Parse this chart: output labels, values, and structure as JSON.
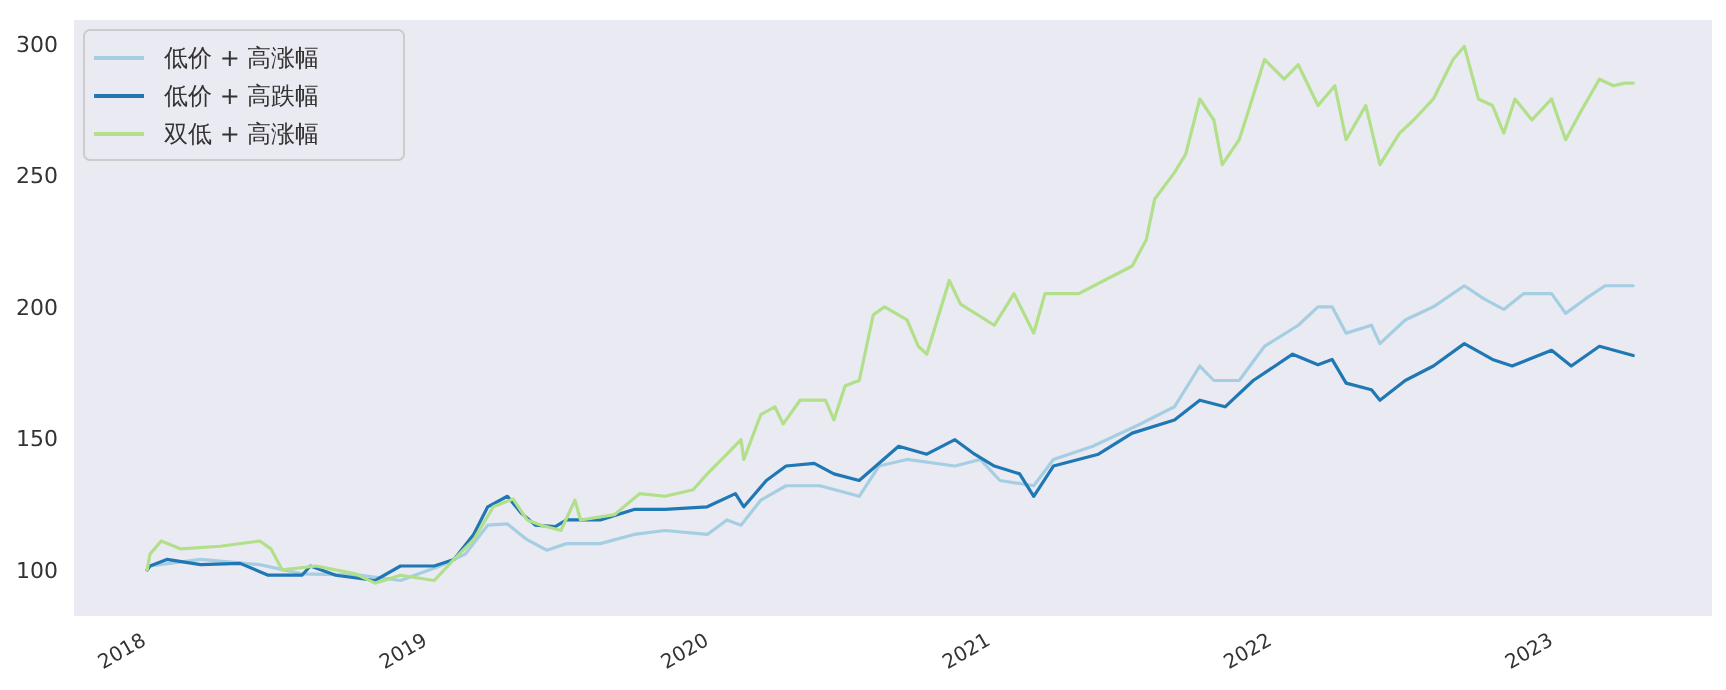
{
  "chart_data": {
    "type": "line",
    "legend": "top left",
    "xlim": [
      2017.74,
      2023.56
    ],
    "xticks": [
      2018,
      2019,
      2020,
      2021,
      2022,
      2023
    ],
    "ylim": [
      82.5,
      309
    ],
    "yticks": [
      100,
      150,
      200,
      250,
      300
    ],
    "series": [
      {
        "name": "低价 + 高涨幅",
        "color": "#a6cee3",
        "x": [
          2018.0,
          2018.01,
          2018.19,
          2018.4,
          2018.55,
          2018.76,
          2018.9,
          2019.04,
          2019.13,
          2019.21,
          2019.28,
          2019.35,
          2019.42,
          2019.49,
          2019.61,
          2019.73,
          2019.84,
          2019.99,
          2020.06,
          2020.11,
          2020.18,
          2020.27,
          2020.39,
          2020.53,
          2020.6,
          2020.7,
          2020.87,
          2020.96,
          2021.03,
          2021.15,
          2021.22,
          2021.36,
          2021.52,
          2021.65,
          2021.74,
          2021.79,
          2021.88,
          2021.97,
          2022.09,
          2022.16,
          2022.21,
          2022.26,
          2022.35,
          2022.38,
          2022.47,
          2022.57,
          2022.68,
          2022.75,
          2022.82,
          2022.89,
          2022.99,
          2023.04,
          2023.11,
          2023.18,
          2023.28
        ],
        "values": [
          100,
          101.5,
          104,
          102,
          98.5,
          98,
          96,
          101.5,
          106,
          117,
          117.5,
          111.5,
          107.5,
          110,
          110,
          113.5,
          115,
          113.5,
          119,
          117,
          126.5,
          132,
          132,
          128,
          139.5,
          142,
          139.5,
          142,
          134,
          132,
          142,
          147,
          155,
          162,
          177.5,
          172,
          172,
          185,
          193,
          200,
          200,
          190,
          193,
          186,
          195,
          200,
          208,
          203,
          199,
          205,
          205,
          197.5,
          203,
          208,
          208
        ]
      },
      {
        "name": "低价 + 高跌幅",
        "color": "#1f78b4",
        "x": [
          2018.0,
          2018.01,
          2018.07,
          2018.19,
          2018.33,
          2018.43,
          2018.55,
          2018.58,
          2018.67,
          2018.81,
          2018.9,
          2019.02,
          2019.09,
          2019.16,
          2019.21,
          2019.28,
          2019.33,
          2019.38,
          2019.45,
          2019.49,
          2019.61,
          2019.73,
          2019.84,
          2019.99,
          2020.09,
          2020.12,
          2020.2,
          2020.27,
          2020.37,
          2020.44,
          2020.53,
          2020.67,
          2020.77,
          2020.87,
          2020.94,
          2021.01,
          2021.1,
          2021.15,
          2021.22,
          2021.38,
          2021.5,
          2021.65,
          2021.74,
          2021.83,
          2021.93,
          2022.07,
          2022.16,
          2022.21,
          2022.26,
          2022.35,
          2022.38,
          2022.47,
          2022.57,
          2022.68,
          2022.78,
          2022.85,
          2022.99,
          2023.06,
          2023.16,
          2023.28
        ],
        "values": [
          100,
          101.5,
          104,
          102,
          102.5,
          98,
          98,
          101.5,
          98,
          96,
          101.5,
          101.5,
          104,
          113.5,
          124,
          128,
          121.5,
          117,
          116.5,
          119,
          119,
          123,
          123,
          124,
          129,
          124,
          134,
          139.5,
          140.5,
          136.5,
          134,
          147,
          144,
          149.5,
          144,
          139.5,
          136.5,
          128,
          139.5,
          144,
          152,
          157,
          164.5,
          162,
          172,
          182,
          178,
          180,
          171,
          168.5,
          164.5,
          172,
          177.5,
          186,
          180,
          177.5,
          183.5,
          177.5,
          185,
          181.5
        ]
      },
      {
        "name": "双低 + 高涨幅",
        "color": "#b2df8a",
        "x": [
          2018.0,
          2018.01,
          2018.05,
          2018.12,
          2018.26,
          2018.4,
          2018.44,
          2018.48,
          2018.6,
          2018.74,
          2018.81,
          2018.9,
          2019.02,
          2019.09,
          2019.16,
          2019.23,
          2019.3,
          2019.35,
          2019.4,
          2019.47,
          2019.52,
          2019.54,
          2019.66,
          2019.75,
          2019.84,
          2019.94,
          2019.99,
          2020.06,
          2020.11,
          2020.12,
          2020.18,
          2020.23,
          2020.26,
          2020.32,
          2020.41,
          2020.44,
          2020.48,
          2020.53,
          2020.58,
          2020.62,
          2020.7,
          2020.74,
          2020.77,
          2020.85,
          2020.89,
          2021.01,
          2021.08,
          2021.15,
          2021.19,
          2021.31,
          2021.4,
          2021.5,
          2021.55,
          2021.58,
          2021.65,
          2021.69,
          2021.74,
          2021.79,
          2021.82,
          2021.88,
          2021.91,
          2021.97,
          2022.04,
          2022.09,
          2022.16,
          2022.22,
          2022.26,
          2022.33,
          2022.38,
          2022.45,
          2022.5,
          2022.57,
          2022.64,
          2022.68,
          2022.73,
          2022.78,
          2022.82,
          2022.86,
          2022.92,
          2022.99,
          2023.04,
          2023.09,
          2023.16,
          2023.21,
          2023.25,
          2023.28
        ],
        "values": [
          100,
          106,
          111,
          108,
          109,
          111,
          108,
          100,
          101.5,
          98.5,
          95,
          98,
          96,
          104,
          111.5,
          124,
          127,
          119,
          117,
          115,
          126.5,
          119,
          121,
          129,
          128,
          130.5,
          136.5,
          144,
          149.5,
          142,
          159,
          162,
          155.5,
          164.5,
          164.5,
          157,
          170,
          172,
          197,
          200,
          195,
          185,
          182,
          210,
          201,
          193,
          205,
          190,
          205,
          205,
          210,
          215.5,
          225.5,
          241,
          251,
          258,
          279,
          271,
          254,
          263.5,
          273.5,
          294,
          286.5,
          292,
          276.5,
          284,
          263.5,
          276.5,
          254,
          266,
          271,
          279,
          294,
          299,
          279,
          276.5,
          266,
          279,
          271,
          279,
          263.5,
          273.5,
          286.5,
          284,
          285,
          285
        ]
      }
    ]
  }
}
